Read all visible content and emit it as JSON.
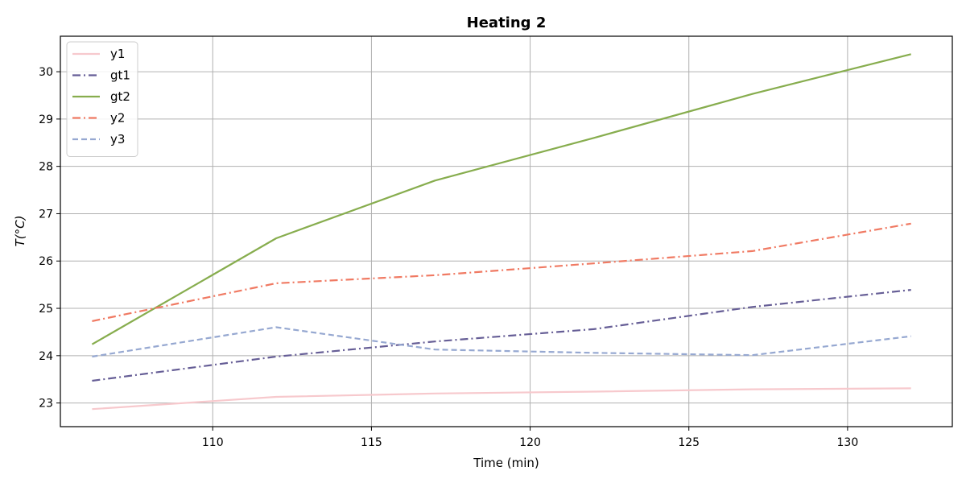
{
  "chart_data": {
    "type": "line",
    "title": "Heating 2",
    "xlabel": "Time (min)",
    "ylabel": "T(°C)",
    "xlim": [
      105.2,
      133.3
    ],
    "ylim": [
      22.5,
      30.75
    ],
    "xticks": [
      110,
      115,
      120,
      125,
      130
    ],
    "yticks": [
      23,
      24,
      25,
      26,
      27,
      28,
      29,
      30
    ],
    "grid": true,
    "legend_position": "top-left",
    "series": [
      {
        "name": "y1",
        "color": "#f7c9cd",
        "dash": "solid",
        "x": [
          106.2,
          112,
          117,
          122,
          127,
          132
        ],
        "y": [
          22.87,
          23.13,
          23.2,
          23.24,
          23.29,
          23.31
        ]
      },
      {
        "name": "gt1",
        "color": "#665e96",
        "dash": "dashdot",
        "x": [
          106.2,
          112,
          117,
          122,
          127,
          132
        ],
        "y": [
          23.47,
          23.98,
          24.3,
          24.56,
          25.03,
          25.39
        ]
      },
      {
        "name": "gt2",
        "color": "#87ad4e",
        "dash": "solid",
        "x": [
          106.2,
          112,
          117,
          122,
          127,
          132
        ],
        "y": [
          24.24,
          26.48,
          27.7,
          28.6,
          29.53,
          30.37
        ]
      },
      {
        "name": "y2",
        "color": "#f07a63",
        "dash": "dashdot",
        "x": [
          106.2,
          112,
          117,
          122,
          127,
          132
        ],
        "y": [
          24.73,
          25.53,
          25.7,
          25.95,
          26.21,
          26.79
        ]
      },
      {
        "name": "y3",
        "color": "#96a8d1",
        "dash": "dashed",
        "x": [
          106.2,
          112,
          117,
          122,
          127,
          132
        ],
        "y": [
          23.98,
          24.6,
          24.13,
          24.06,
          24.01,
          24.41
        ]
      }
    ]
  }
}
